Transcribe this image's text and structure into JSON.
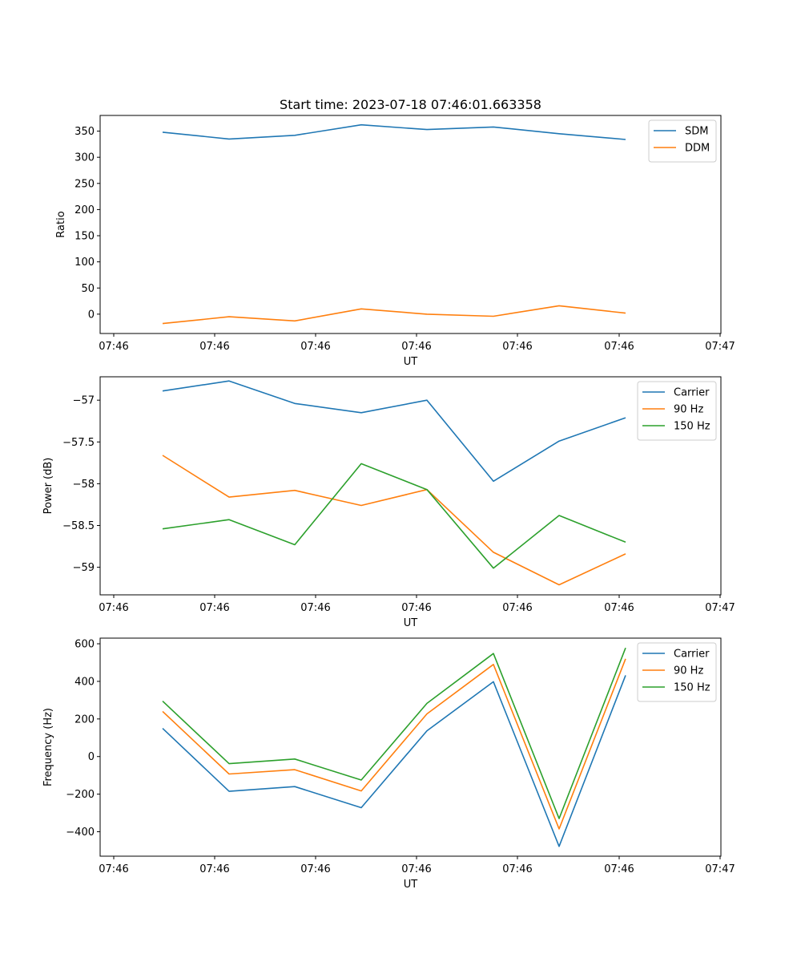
{
  "figure": {
    "title": "Start time: 2023-07-18 07:46:01.663358"
  },
  "chart_data": [
    {
      "type": "line",
      "title": "Start time: 2023-07-18 07:46:01.663358",
      "xlabel": "UT",
      "ylabel": "Ratio",
      "x_tick_labels": [
        "07:46",
        "07:46",
        "07:46",
        "07:46",
        "07:46",
        "07:46",
        "07:46"
      ],
      "x_last_tick_label": "07:47",
      "yticks": [
        0,
        50,
        100,
        150,
        200,
        250,
        300,
        350
      ],
      "ylim": [
        -37,
        380
      ],
      "legend_position": "top-right",
      "series": [
        {
          "name": "SDM",
          "color": "#1f77b4",
          "values": [
            348,
            335,
            342,
            362,
            353,
            358,
            345,
            334
          ]
        },
        {
          "name": "DDM",
          "color": "#ff7f0e",
          "values": [
            -18,
            -5,
            -13,
            10,
            0,
            -4,
            16,
            2
          ]
        }
      ]
    },
    {
      "type": "line",
      "title": "",
      "xlabel": "UT",
      "ylabel": "Power (dB)",
      "x_tick_labels": [
        "07:46",
        "07:46",
        "07:46",
        "07:46",
        "07:46",
        "07:46",
        "07:46"
      ],
      "x_last_tick_label": "07:47",
      "yticks": [
        -59.0,
        -58.5,
        -58.0,
        -57.5,
        -57.0
      ],
      "ylim": [
        -59.33,
        -56.72
      ],
      "legend_position": "top-right",
      "series": [
        {
          "name": "Carrier",
          "color": "#1f77b4",
          "values": [
            -56.89,
            -56.77,
            -57.04,
            -57.15,
            -57.0,
            -57.97,
            -57.49,
            -57.21
          ]
        },
        {
          "name": "90 Hz",
          "color": "#ff7f0e",
          "values": [
            -57.66,
            -58.16,
            -58.08,
            -58.26,
            -58.07,
            -58.82,
            -59.21,
            -58.84
          ]
        },
        {
          "name": "150 Hz",
          "color": "#2ca02c",
          "values": [
            -58.54,
            -58.43,
            -58.73,
            -57.76,
            -58.07,
            -59.01,
            -58.38,
            -58.7
          ]
        }
      ]
    },
    {
      "type": "line",
      "title": "",
      "xlabel": "UT",
      "ylabel": "Frequency (Hz)",
      "x_tick_labels": [
        "07:46",
        "07:46",
        "07:46",
        "07:46",
        "07:46",
        "07:46",
        "07:46"
      ],
      "x_last_tick_label": "07:47",
      "yticks": [
        -400,
        -200,
        0,
        200,
        400,
        600
      ],
      "ylim": [
        -530,
        630
      ],
      "legend_position": "top-right",
      "series": [
        {
          "name": "Carrier",
          "color": "#1f77b4",
          "values": [
            150,
            -185,
            -160,
            -272,
            137,
            398,
            -478,
            432
          ]
        },
        {
          "name": "90 Hz",
          "color": "#ff7f0e",
          "values": [
            240,
            -93,
            -70,
            -183,
            227,
            490,
            -385,
            520
          ]
        },
        {
          "name": "150 Hz",
          "color": "#2ca02c",
          "values": [
            295,
            -38,
            -13,
            -125,
            283,
            548,
            -330,
            578
          ]
        }
      ]
    }
  ]
}
